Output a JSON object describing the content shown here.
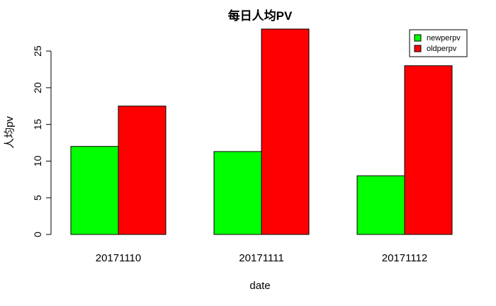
{
  "chart_data": {
    "type": "bar",
    "title": "每日人均PV",
    "xlabel": "date",
    "ylabel": "人均pv",
    "categories": [
      "20171110",
      "20171111",
      "20171112"
    ],
    "series": [
      {
        "name": "newperpv",
        "color": "#00ff00",
        "values": [
          12.0,
          11.3,
          8.0
        ]
      },
      {
        "name": "oldperpv",
        "color": "#ff0000",
        "values": [
          17.5,
          28.0,
          23.0
        ]
      }
    ],
    "yticks": [
      0,
      5,
      10,
      15,
      20,
      25
    ],
    "ylim": [
      0,
      28
    ],
    "grid": false,
    "legend": "top-right"
  }
}
